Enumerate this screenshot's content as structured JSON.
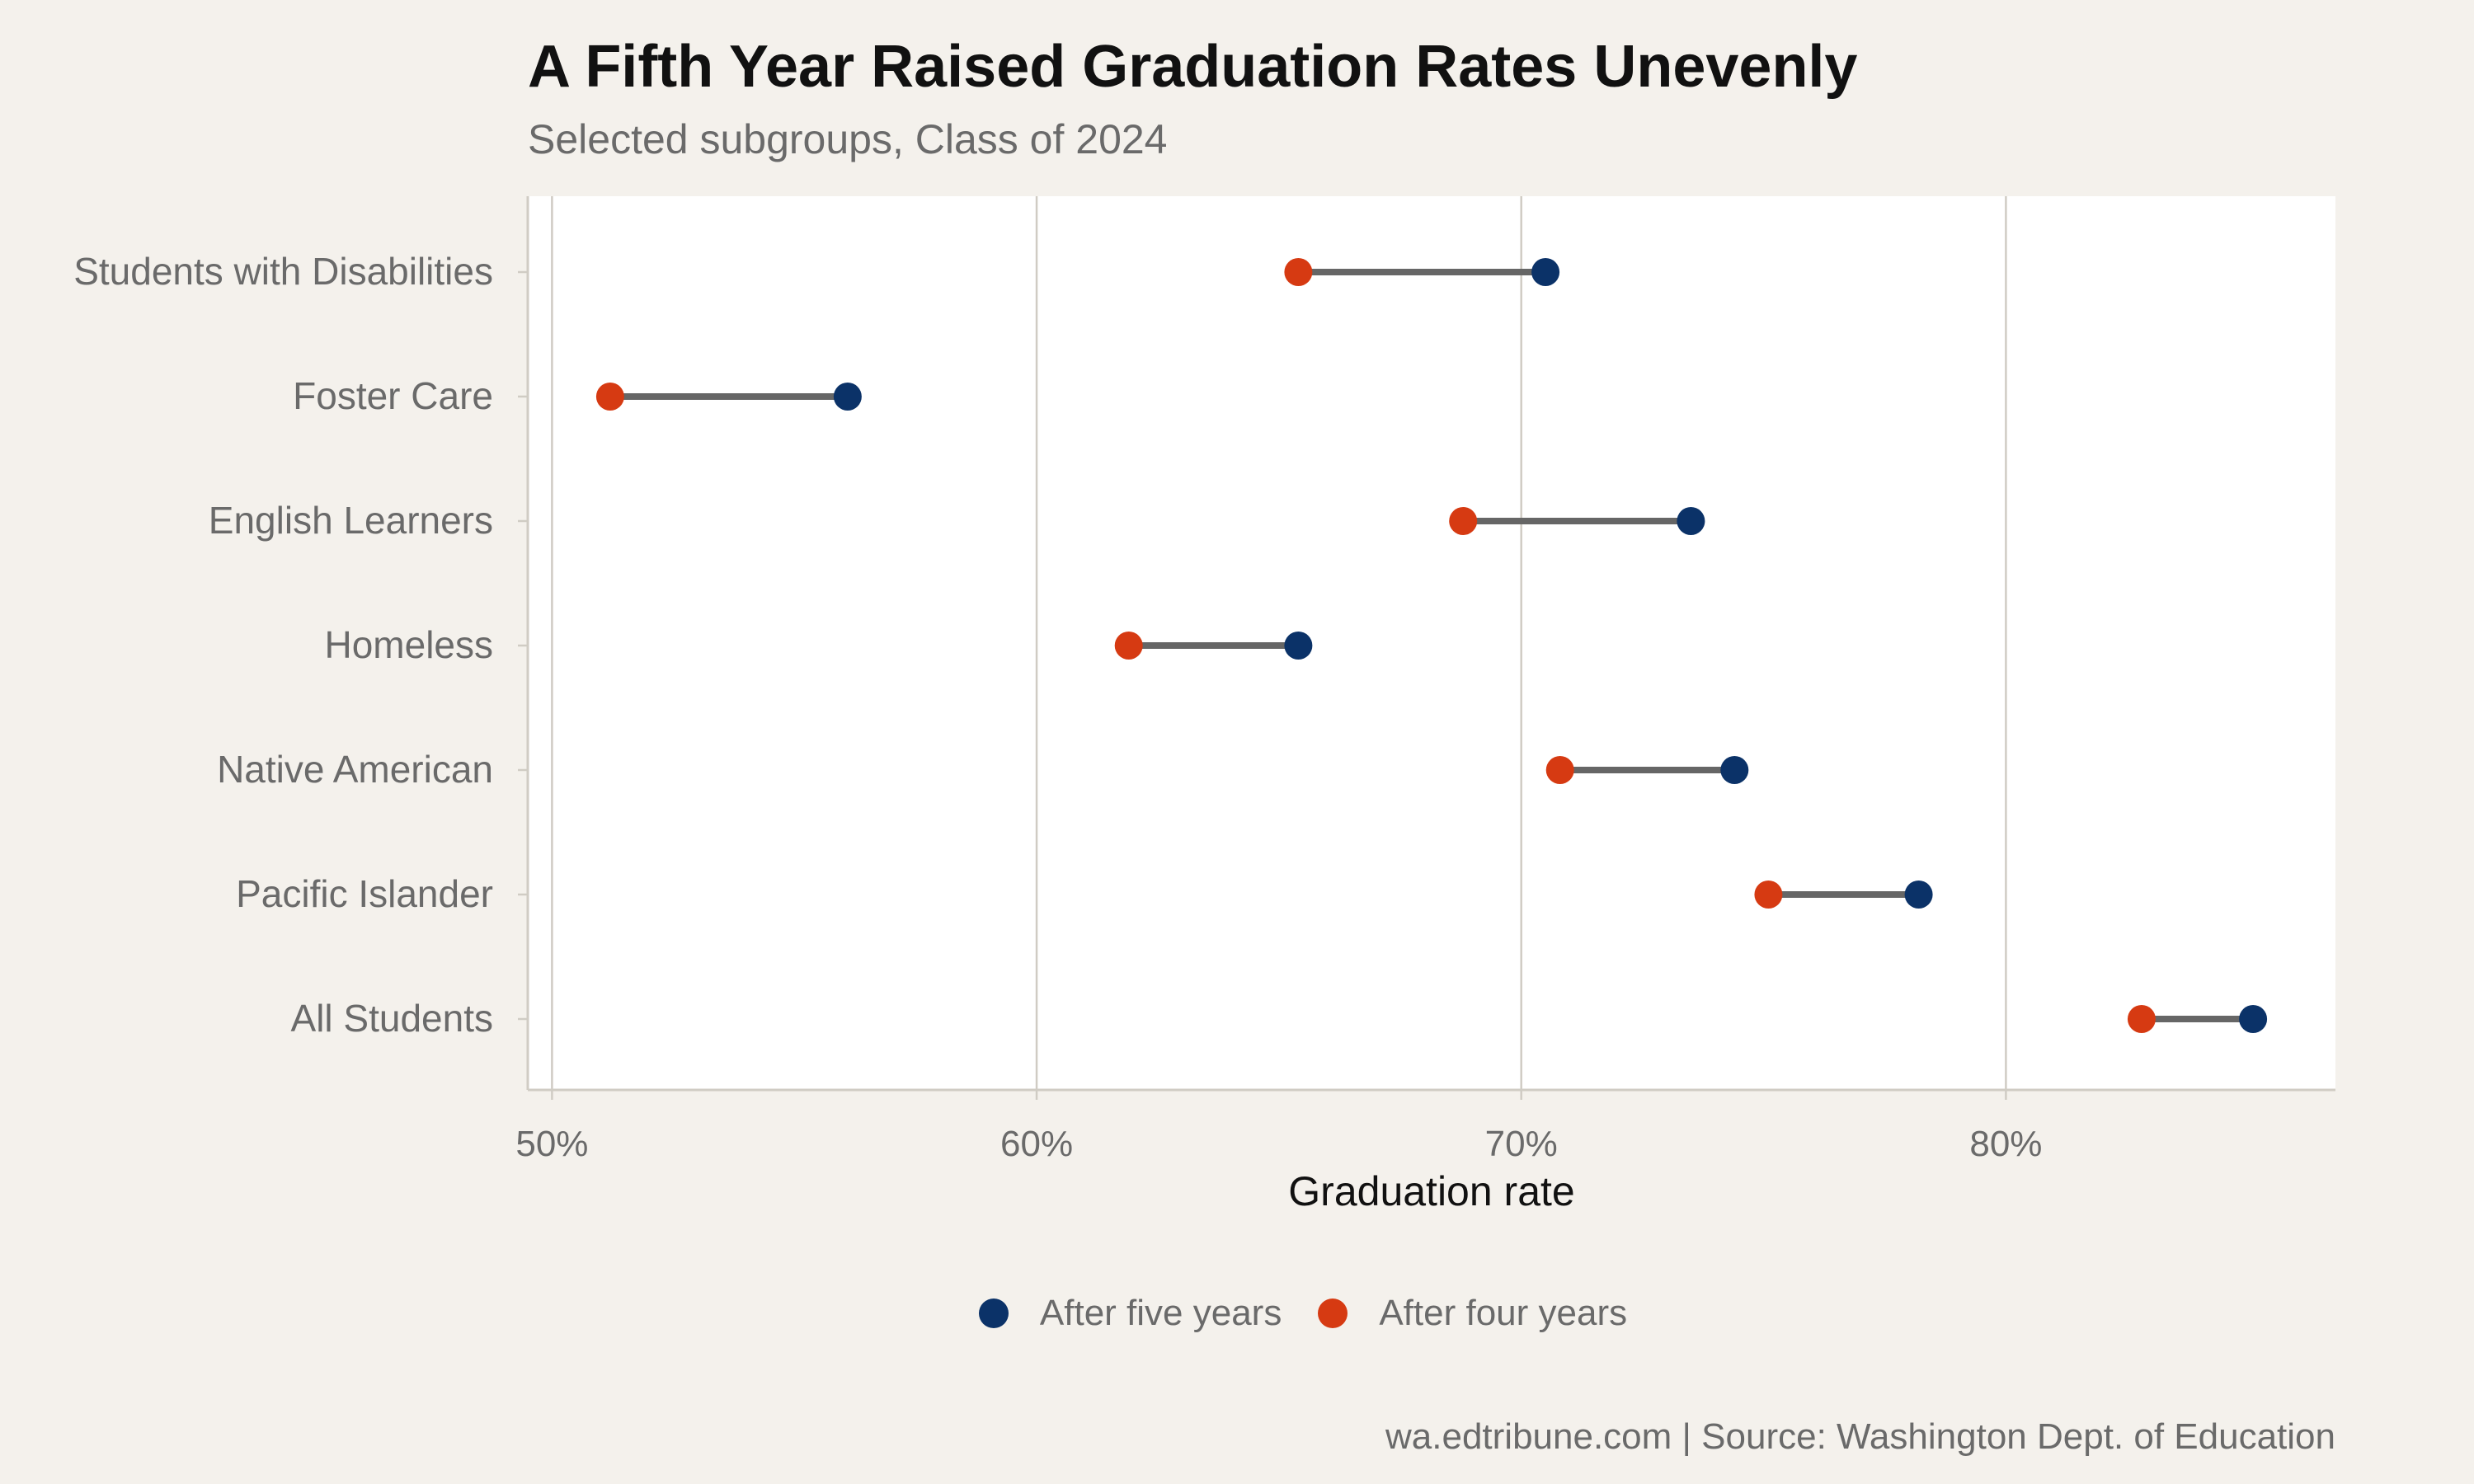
{
  "title": "A Fifth Year Raised Graduation Rates Unevenly",
  "subtitle": "Selected subgroups, Class of 2024",
  "caption": "wa.edtribune.com | Source: Washington Dept. of Education",
  "colors": {
    "five_year": "#0b3268",
    "four_year": "#d63a12",
    "connector": "#666666",
    "panel": "#ffffff",
    "grid": "#d0ccc4",
    "background": "#f4f1ec"
  },
  "legend": [
    {
      "label": "After five years",
      "color": "#0b3268"
    },
    {
      "label": "After four years",
      "color": "#d63a12"
    }
  ],
  "chart_data": {
    "type": "dumbbell",
    "title": "A Fifth Year Raised Graduation Rates Unevenly",
    "subtitle": "Selected subgroups, Class of 2024",
    "xlabel": "Graduation rate",
    "ylabel": "",
    "xlim": [
      49.5,
      86.8
    ],
    "x_ticks": [
      50,
      60,
      70,
      80
    ],
    "x_tick_labels": [
      "50%",
      "60%",
      "70%",
      "80%"
    ],
    "grid": "vertical",
    "legend_position": "bottom",
    "categories": [
      "Students with Disabilities",
      "Foster Care",
      "English Learners",
      "Homeless",
      "Native American",
      "Pacific Islander",
      "All Students"
    ],
    "series": [
      {
        "name": "After four years",
        "values": [
          65.4,
          51.2,
          68.8,
          61.9,
          70.8,
          75.1,
          82.8
        ]
      },
      {
        "name": "After five years",
        "values": [
          70.5,
          56.1,
          73.5,
          65.4,
          74.4,
          78.2,
          85.1
        ]
      }
    ]
  }
}
